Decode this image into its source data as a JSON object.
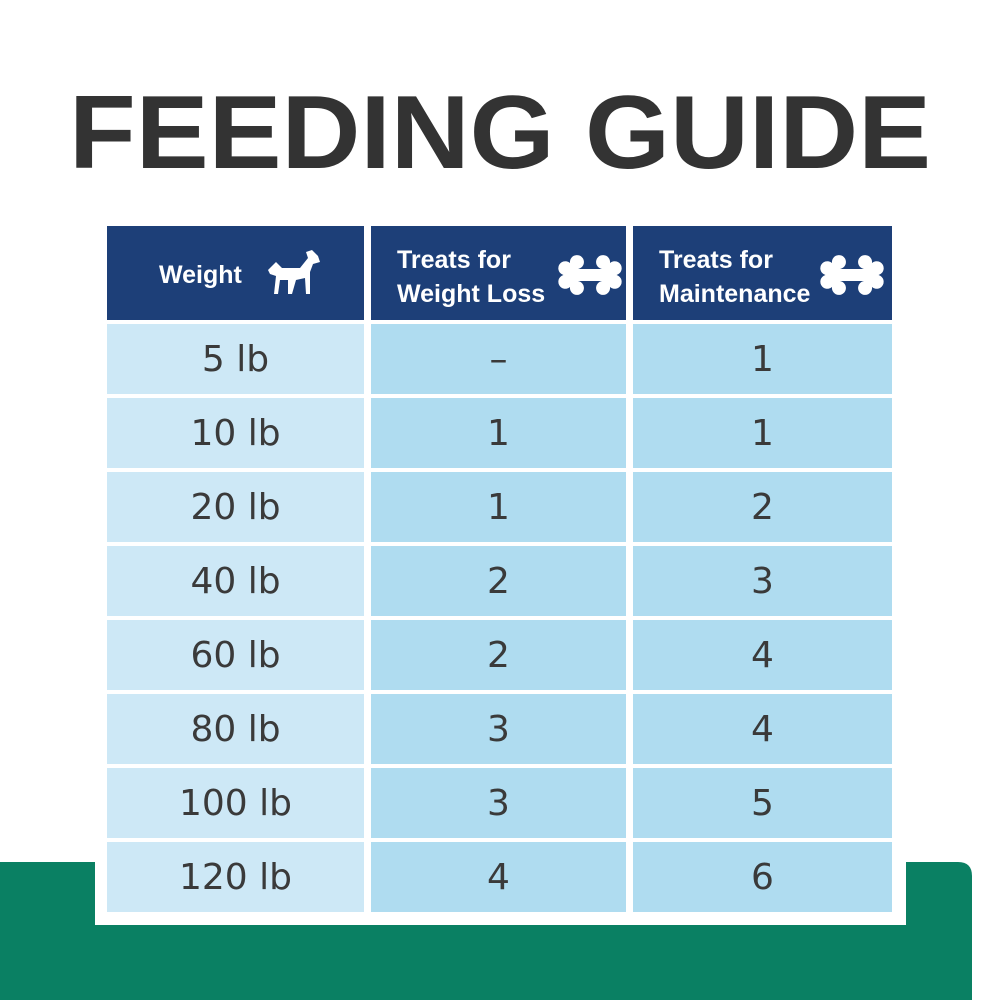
{
  "header": {
    "title": "FEEDING GUIDE"
  },
  "table": {
    "columns": [
      [
        "Weight"
      ],
      [
        "Treats for",
        "Weight Loss"
      ],
      [
        "Treats for",
        "Maintenance"
      ]
    ],
    "rows": [
      [
        "5 lb",
        "–",
        "1"
      ],
      [
        "10 lb",
        "1",
        "1"
      ],
      [
        "20 lb",
        "1",
        "2"
      ],
      [
        "40 lb",
        "2",
        "3"
      ],
      [
        "60 lb",
        "2",
        "4"
      ],
      [
        "80 lb",
        "3",
        "4"
      ],
      [
        "100 lb",
        "3",
        "5"
      ],
      [
        "120 lb",
        "4",
        "6"
      ]
    ]
  }
}
